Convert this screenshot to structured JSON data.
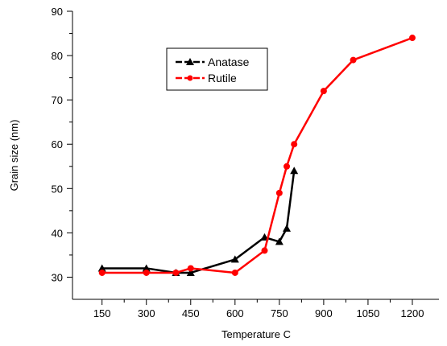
{
  "chart_data": {
    "type": "line",
    "xlabel": "Temperature C",
    "ylabel": "Grain size (nm)",
    "x_ticks": [
      150,
      300,
      450,
      600,
      750,
      900,
      1050,
      1200
    ],
    "y_ticks": [
      30,
      40,
      50,
      60,
      70,
      80,
      90
    ],
    "xlim": [
      50,
      1290
    ],
    "ylim": [
      25,
      90
    ],
    "grid": false,
    "legend_position": "top-center",
    "series": [
      {
        "name": "Anatase",
        "color": "#000000",
        "marker": "triangle",
        "points": [
          [
            150,
            32
          ],
          [
            300,
            32
          ],
          [
            400,
            31
          ],
          [
            450,
            31
          ],
          [
            600,
            34
          ],
          [
            700,
            39
          ],
          [
            750,
            38
          ],
          [
            775,
            41
          ],
          [
            800,
            54
          ]
        ]
      },
      {
        "name": "Rutile",
        "color": "#ff0000",
        "marker": "circle",
        "points": [
          [
            150,
            31
          ],
          [
            300,
            31
          ],
          [
            400,
            31
          ],
          [
            450,
            32
          ],
          [
            600,
            31
          ],
          [
            700,
            36
          ],
          [
            750,
            49
          ],
          [
            775,
            55
          ],
          [
            800,
            60
          ],
          [
            900,
            72
          ],
          [
            1000,
            79
          ],
          [
            1200,
            84
          ]
        ]
      }
    ]
  }
}
